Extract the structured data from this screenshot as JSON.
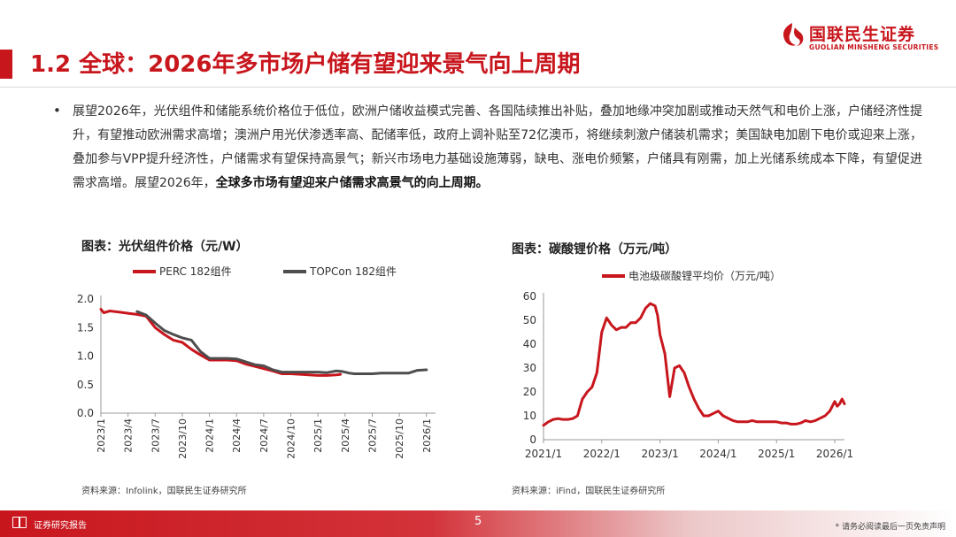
{
  "brand": {
    "name_cn": "国联民生证券",
    "name_en": "GUOLIAN MINSHENG SECURITIES",
    "color": "#c8161d"
  },
  "slide": {
    "title": "1.2 全球：2026年多市场户储有望迎来景气向上周期",
    "bullet": "•",
    "paragraph": "展望2026年，光伏组件和储能系统价格位于低位，欧洲户储收益模式完善、各国陆续推出补贴，叠加地缘冲突加剧或推动天然气和电价上涨，户储经济性提升，有望推动欧洲需求高增；澳洲户用光伏渗透率高、配储率低，政府上调补贴至72亿澳币，将继续刺激户储装机需求；美国缺电加剧下电价或迎来上涨，叠加参与VPP提升经济性，户储需求有望保持高景气；新兴市场电力基础设施薄弱，缺电、涨电价频繁，户储具有刚需，加上光储系统成本下降，有望促进需求高增。展望2026年，",
    "paragraph_bold": "全球多市场有望迎来户储需求高景气的向上周期。"
  },
  "charts": {
    "left": {
      "title": "图表：光伏组件价格（元/W）",
      "source": "资料来源：Infolink，国联民生证券研究所"
    },
    "right": {
      "title": "图表：碳酸锂价格（万元/吨）",
      "source": "资料来源：iFind，国联民生证券研究所"
    }
  },
  "chart_data": [
    {
      "type": "line",
      "title": "图表：光伏组件价格（元/W）",
      "xlabel": "",
      "ylabel": "",
      "ylim": [
        0,
        2.0
      ],
      "yticks": [
        "0.0",
        "0.5",
        "1.0",
        "1.5",
        "2.0"
      ],
      "xticks": [
        "2023/1",
        "2023/4",
        "2023/7",
        "2023/10",
        "2024/1",
        "2024/4",
        "2024/7",
        "2024/10",
        "2025/1",
        "2025/4",
        "2025/7",
        "2025/10",
        "2026/1"
      ],
      "xlim": [
        0,
        37
      ],
      "grid": false,
      "legend_position": "top",
      "series": [
        {
          "name": "PERC 182组件",
          "color": "#c8161d",
          "x": [
            0,
            0.3,
            1,
            2,
            3,
            4,
            5,
            6,
            7,
            8,
            9,
            10,
            11,
            12,
            13,
            14,
            15,
            16,
            17,
            18,
            19,
            20,
            21,
            22,
            23,
            24,
            25,
            26,
            26.5
          ],
          "values": [
            1.82,
            1.76,
            1.79,
            1.77,
            1.75,
            1.73,
            1.7,
            1.5,
            1.38,
            1.28,
            1.24,
            1.12,
            1.02,
            0.93,
            0.93,
            0.93,
            0.92,
            0.86,
            0.82,
            0.78,
            0.74,
            0.69,
            0.69,
            0.68,
            0.67,
            0.66,
            0.66,
            0.67,
            0.68
          ]
        },
        {
          "name": "TOPCon 182组件",
          "color": "#4d4d4d",
          "x": [
            4,
            5,
            6,
            7,
            8,
            9,
            10,
            11,
            12,
            13,
            14,
            15,
            16,
            17,
            18,
            19,
            20,
            21,
            22,
            23,
            24,
            25,
            26,
            26.7,
            27.5,
            28,
            29,
            30,
            31,
            32,
            33,
            34,
            35,
            36
          ],
          "values": [
            1.78,
            1.72,
            1.58,
            1.45,
            1.38,
            1.32,
            1.28,
            1.08,
            0.96,
            0.96,
            0.96,
            0.95,
            0.9,
            0.85,
            0.83,
            0.76,
            0.72,
            0.72,
            0.72,
            0.72,
            0.72,
            0.71,
            0.74,
            0.73,
            0.7,
            0.69,
            0.69,
            0.69,
            0.7,
            0.7,
            0.7,
            0.7,
            0.75,
            0.76
          ]
        }
      ]
    },
    {
      "type": "line",
      "title": "图表：碳酸锂价格（万元/吨）",
      "xlabel": "",
      "ylabel": "",
      "ylim": [
        0,
        60
      ],
      "yticks": [
        "0",
        "10",
        "20",
        "30",
        "40",
        "50",
        "60"
      ],
      "xticks": [
        "2021/1",
        "2022/1",
        "2023/1",
        "2024/1",
        "2025/1",
        "2026/1"
      ],
      "xlim": [
        0,
        62
      ],
      "grid": false,
      "legend_position": "top",
      "series": [
        {
          "name": "电池级碳酸锂平均价（万元/吨）",
          "color": "#c8161d",
          "x": [
            0,
            1,
            2,
            3,
            4,
            5,
            6,
            7,
            8,
            9,
            10,
            11,
            12,
            13,
            14,
            15,
            16,
            17,
            18,
            19,
            20,
            21,
            22,
            23,
            23.5,
            24,
            25,
            26,
            27,
            28,
            29,
            30,
            31,
            32,
            33,
            34,
            35,
            36,
            37,
            38,
            39,
            40,
            41,
            42,
            43,
            44,
            45,
            46,
            47,
            48,
            49,
            50,
            51,
            52,
            53,
            54,
            55,
            56,
            57,
            58,
            59,
            60,
            60.5,
            61,
            61.5,
            62
          ],
          "values": [
            6,
            7.5,
            8.5,
            8.8,
            8.5,
            8.5,
            8.8,
            10,
            17,
            20,
            22,
            28,
            45,
            51,
            48,
            46,
            47,
            47,
            49,
            49,
            51,
            55,
            57,
            56,
            52,
            44,
            36,
            18,
            30,
            31,
            28,
            22,
            17,
            13,
            10,
            10,
            11,
            12,
            10,
            9,
            8,
            7.5,
            7.5,
            7.5,
            8,
            7.5,
            7.5,
            7.5,
            7.5,
            7.5,
            7,
            7,
            6.5,
            6.5,
            7,
            8,
            7.5,
            8,
            9,
            10,
            12,
            16,
            14,
            15,
            17,
            15
          ]
        }
      ]
    }
  ],
  "footer": {
    "label": "证券研究报告",
    "page": "5",
    "disclaimer": "* 请务必阅读最后一页免责声明"
  }
}
